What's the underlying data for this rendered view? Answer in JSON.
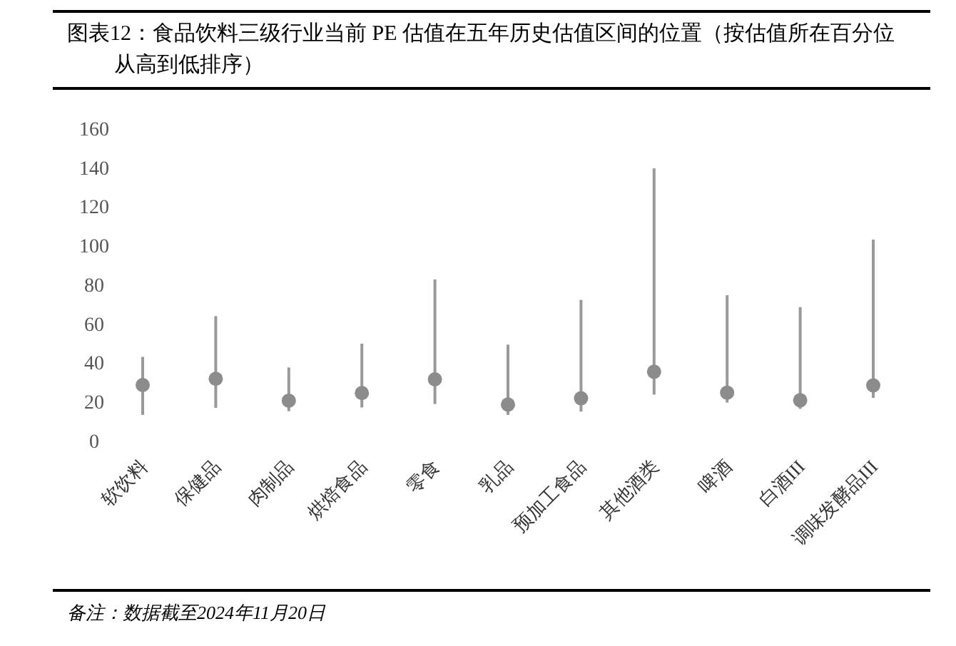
{
  "chart_data": {
    "type": "bar",
    "title": "图表12：食品饮料三级行业当前 PE 估值在五年历史估值区间的位置（按估值所在百分位从高到低排序）",
    "categories": [
      "软饮料",
      "保健品",
      "肉制品",
      "烘焙食品",
      "零食",
      "乳品",
      "预加工食品",
      "其他酒类",
      "啤酒",
      "白酒III",
      "调味发酵品III"
    ],
    "series": [
      {
        "color": "#999999",
        "base": [
          13.2,
          16.8,
          15.1,
          17,
          18.8,
          13.2,
          14.9,
          23.6,
          19.5,
          16.3,
          21.9
        ],
        "values": [
          29.7,
          47,
          22.4,
          32.7,
          63.8,
          36,
          57.2,
          115.9,
          55,
          52.1,
          81.1
        ]
      },
      {
        "type": "scatter",
        "color": "#8c8c8c",
        "x": [
          "软饮料",
          "保健品",
          "肉制品",
          "烘焙食品",
          "零食",
          "乳品",
          "预加工食品",
          "其他酒类",
          "啤酒",
          "白酒III",
          "调味发酵品III"
        ],
        "values": [
          28.5,
          31.7,
          20.5,
          24.4,
          31.4,
          18.5,
          21.7,
          35.3,
          24.6,
          20.7,
          28.3
        ]
      }
    ],
    "marker": "circle",
    "ylim": [
      0,
      160
    ],
    "yticks": [
      0,
      20,
      40,
      60,
      80,
      100,
      120,
      140,
      160
    ],
    "annotations": [
      "备注：数据截至2024年11月20日"
    ]
  }
}
